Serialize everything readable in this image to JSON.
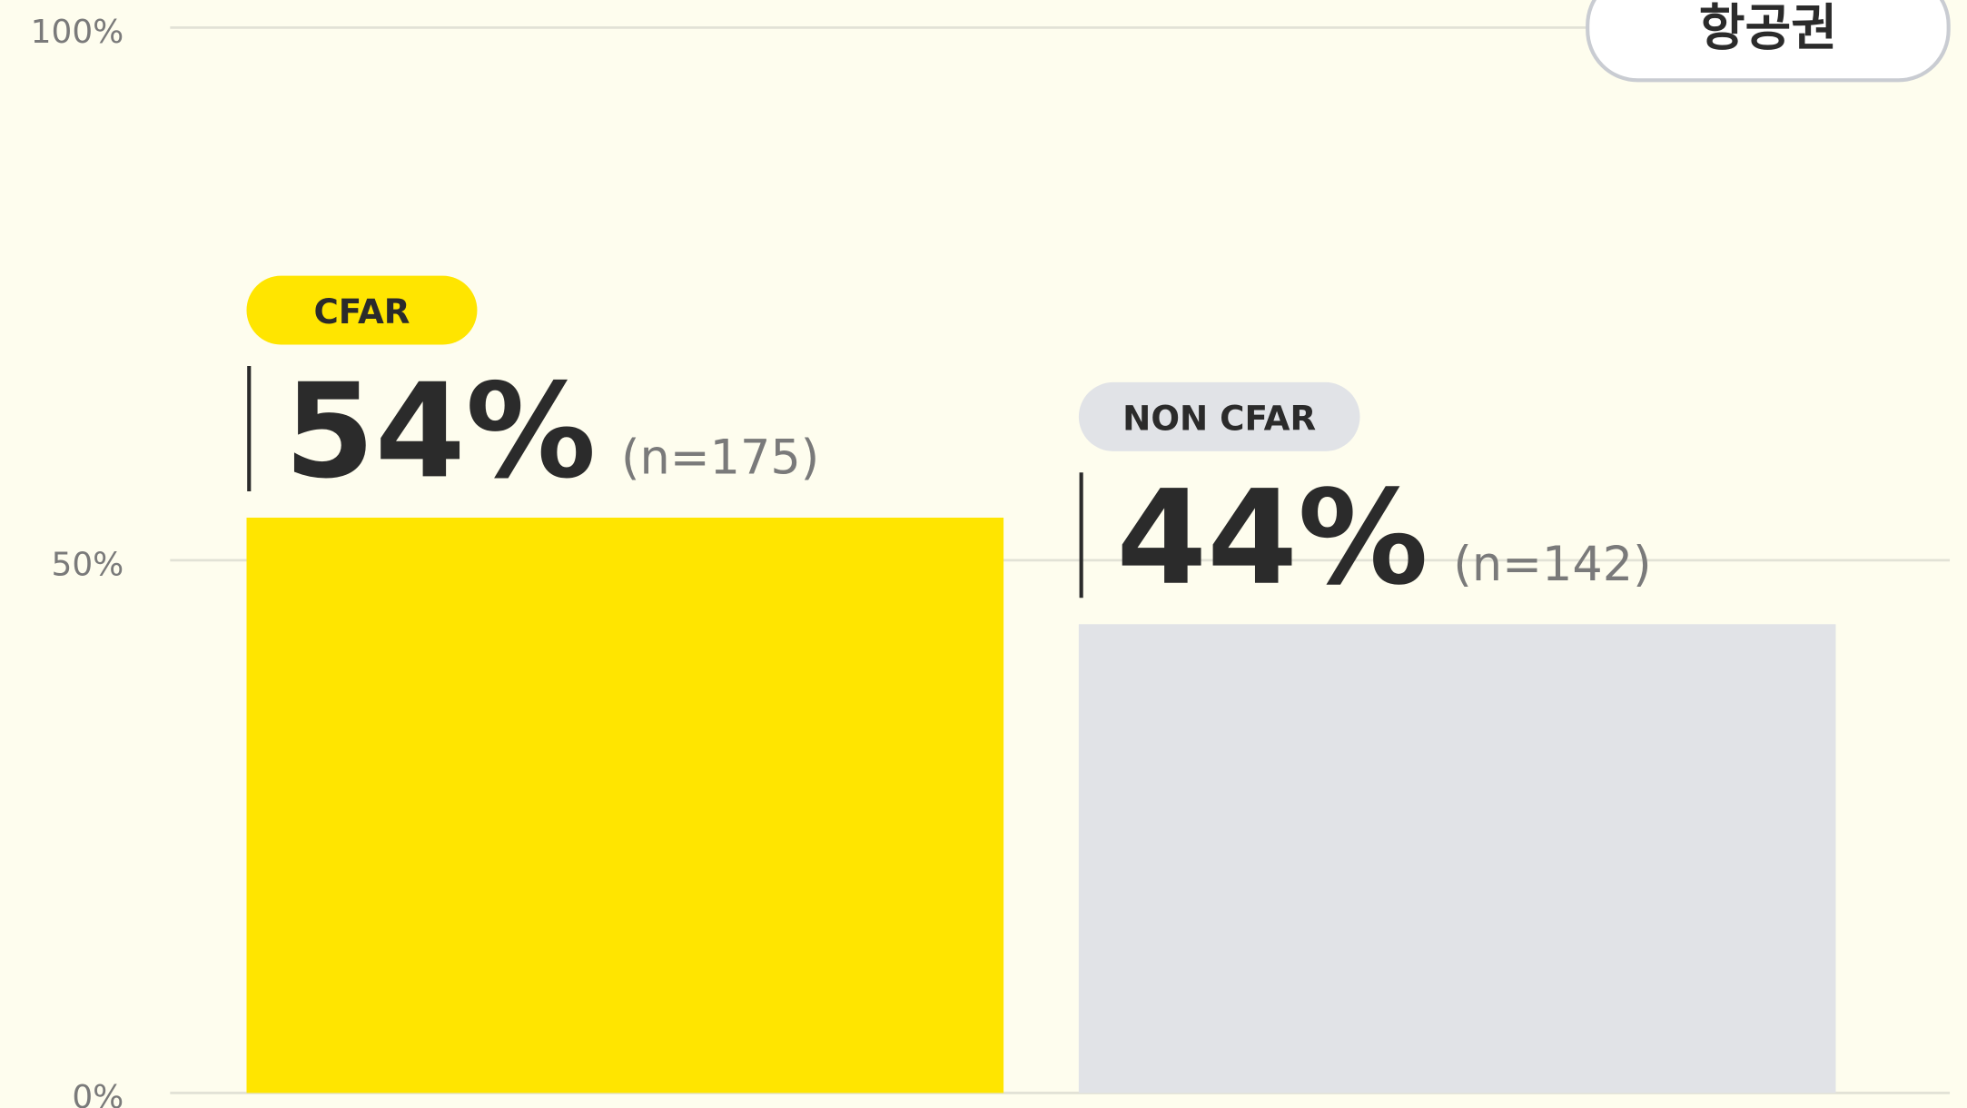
{
  "chart_data": {
    "type": "bar",
    "button": "항공권",
    "categories": [
      "CFAR",
      "NON CFAR"
    ],
    "values": [
      54,
      44
    ],
    "value_labels": [
      "54%",
      "44%"
    ],
    "sample_sizes": [
      "(n=175)",
      "(n=142)"
    ],
    "colors": [
      "#ffe500",
      "#e1e3e7"
    ],
    "ylim": [
      0,
      100
    ],
    "yticks": [
      {
        "value": 0,
        "label": "0%"
      },
      {
        "value": 50,
        "label": "50%"
      },
      {
        "value": 100,
        "label": "100%"
      }
    ],
    "grid": true
  }
}
